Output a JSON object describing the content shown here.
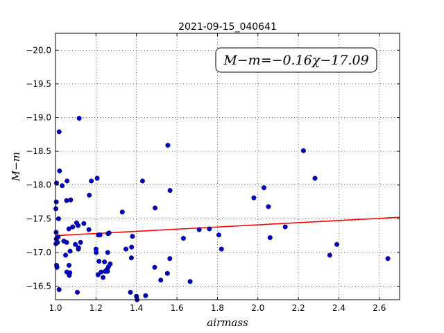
{
  "chart_data": {
    "type": "scatter",
    "title": "2021-09-15_040641",
    "xlabel": "airmass",
    "ylabel": "M−m",
    "xlim": [
      1.0,
      2.7
    ],
    "ylim": [
      -20.25,
      -16.3
    ],
    "y_inverted": true,
    "grid": true,
    "grid_style": "dotted",
    "xticks": [
      1.0,
      1.2,
      1.4,
      1.6,
      1.8,
      2.0,
      2.2,
      2.4,
      2.6
    ],
    "xtick_labels": [
      "1.0",
      "1.2",
      "1.4",
      "1.6",
      "1.8",
      "2.0",
      "2.2",
      "2.4",
      "2.6"
    ],
    "yticks": [
      -16.5,
      -17.0,
      -17.5,
      -18.0,
      -18.5,
      -19.0,
      -19.5,
      -20.0
    ],
    "ytick_labels": [
      "−16.5",
      "−17.0",
      "−17.5",
      "−18.0",
      "−18.5",
      "−19.0",
      "−19.5",
      "−20.0"
    ],
    "annotation": {
      "text": "M−m=−0.16χ−17.09",
      "placement": "top-right"
    },
    "fit_line": {
      "slope": -0.16,
      "intercept": -17.09,
      "color": "#ff0000"
    },
    "point_color": "#0000cc",
    "points": [
      [
        1.007,
        -16.78
      ],
      [
        1.005,
        -16.81
      ],
      [
        1.002,
        -17.13
      ],
      [
        1.004,
        -17.2
      ],
      [
        1.003,
        -17.3
      ],
      [
        1.01,
        -17.15
      ],
      [
        1.013,
        -17.23
      ],
      [
        1.015,
        -17.5
      ],
      [
        1.002,
        -17.65
      ],
      [
        1.004,
        -17.75
      ],
      [
        1.005,
        -18.03
      ],
      [
        1.018,
        -16.45
      ],
      [
        1.02,
        -18.21
      ],
      [
        1.018,
        -18.79
      ],
      [
        1.033,
        -17.99
      ],
      [
        1.041,
        -17.17
      ],
      [
        1.05,
        -16.96
      ],
      [
        1.055,
        -17.15
      ],
      [
        1.056,
        -16.71
      ],
      [
        1.055,
        -17.77
      ],
      [
        1.057,
        -18.06
      ],
      [
        1.066,
        -17.35
      ],
      [
        1.067,
        -16.81
      ],
      [
        1.068,
        -16.66
      ],
      [
        1.071,
        -16.7
      ],
      [
        1.072,
        -17.02
      ],
      [
        1.075,
        -17.78
      ],
      [
        1.085,
        -17.38
      ],
      [
        1.098,
        -17.12
      ],
      [
        1.104,
        -17.44
      ],
      [
        1.108,
        -16.41
      ],
      [
        1.112,
        -17.4
      ],
      [
        1.113,
        -17.05
      ],
      [
        1.114,
        -17.07
      ],
      [
        1.117,
        -18.99
      ],
      [
        1.124,
        -17.15
      ],
      [
        1.14,
        -17.43
      ],
      [
        1.165,
        -17.34
      ],
      [
        1.167,
        -17.85
      ],
      [
        1.177,
        -18.06
      ],
      [
        1.2,
        -17.05
      ],
      [
        1.201,
        -17.0
      ],
      [
        1.206,
        -18.1
      ],
      [
        1.21,
        -16.67
      ],
      [
        1.212,
        -17.26
      ],
      [
        1.215,
        -16.87
      ],
      [
        1.22,
        -17.26
      ],
      [
        1.225,
        -16.71
      ],
      [
        1.235,
        -16.63
      ],
      [
        1.242,
        -16.86
      ],
      [
        1.245,
        -16.72
      ],
      [
        1.255,
        -16.75
      ],
      [
        1.257,
        -16.72
      ],
      [
        1.258,
        -17.0
      ],
      [
        1.26,
        -17.28
      ],
      [
        1.262,
        -16.79
      ],
      [
        1.265,
        -17.29
      ],
      [
        1.27,
        -16.83
      ],
      [
        1.33,
        -17.6
      ],
      [
        1.348,
        -17.05
      ],
      [
        1.37,
        -16.41
      ],
      [
        1.375,
        -16.92
      ],
      [
        1.376,
        -17.08
      ],
      [
        1.38,
        -17.24
      ],
      [
        1.4,
        -16.35
      ],
      [
        1.403,
        -16.3
      ],
      [
        1.43,
        -18.06
      ],
      [
        1.445,
        -16.36
      ],
      [
        1.49,
        -16.78
      ],
      [
        1.492,
        -17.66
      ],
      [
        1.52,
        -16.59
      ],
      [
        1.553,
        -16.69
      ],
      [
        1.555,
        -18.59
      ],
      [
        1.565,
        -16.91
      ],
      [
        1.566,
        -17.92
      ],
      [
        1.632,
        -17.21
      ],
      [
        1.665,
        -16.57
      ],
      [
        1.71,
        -17.34
      ],
      [
        1.76,
        -17.35
      ],
      [
        1.807,
        -17.26
      ],
      [
        1.82,
        -17.05
      ],
      [
        1.98,
        -17.81
      ],
      [
        2.03,
        -17.96
      ],
      [
        2.052,
        -17.68
      ],
      [
        2.06,
        -17.22
      ],
      [
        2.135,
        -17.38
      ],
      [
        2.225,
        -18.51
      ],
      [
        2.282,
        -18.1
      ],
      [
        2.355,
        -16.96
      ],
      [
        2.39,
        -17.12
      ],
      [
        2.642,
        -16.91
      ]
    ]
  }
}
